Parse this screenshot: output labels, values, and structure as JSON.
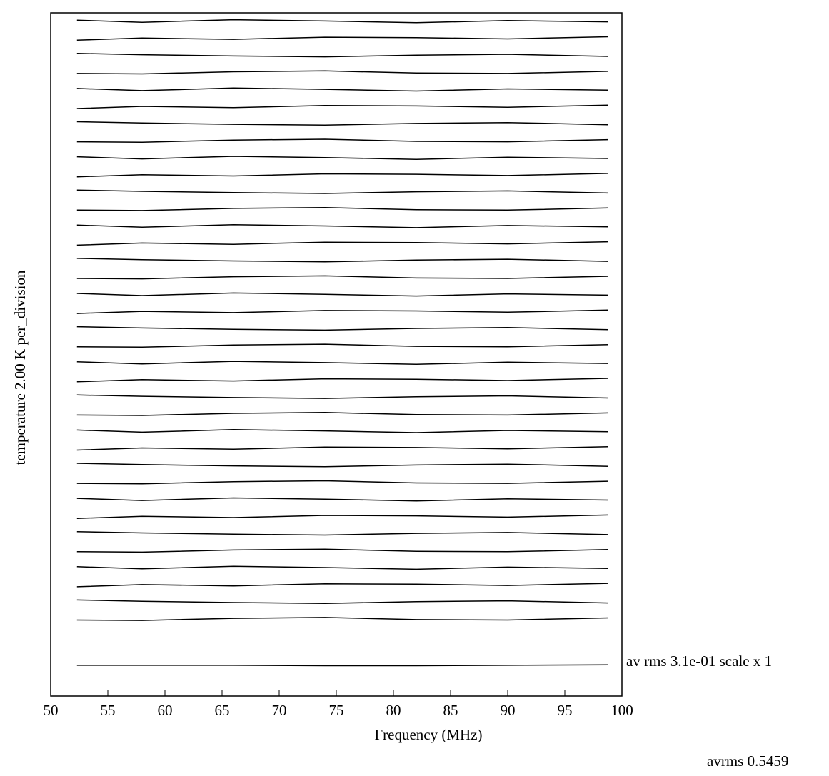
{
  "chart_data": {
    "type": "line",
    "x_label": "Frequency (MHz)",
    "y_label": "temperature   2.00 K  per_division",
    "annotations": [
      "av  rms 3.1e-01 scale x 1",
      "avrms 0.5459"
    ],
    "color": "#000000",
    "xlim": [
      50,
      100
    ],
    "xticks": [
      50,
      55,
      60,
      65,
      70,
      75,
      80,
      85,
      90,
      95,
      100
    ],
    "ylim": [
      0,
      160
    ],
    "x": [
      52.3,
      58,
      66,
      74,
      82,
      90,
      98.8
    ],
    "series": [
      {
        "values": [
          158.3,
          157.8,
          158.4,
          158.1,
          157.7,
          158.2,
          157.9
        ]
      },
      {
        "values": [
          153.6,
          154.1,
          153.8,
          154.3,
          154.2,
          153.9,
          154.4
        ]
      },
      {
        "values": [
          150.5,
          150.2,
          149.9,
          149.7,
          150.1,
          150.3,
          149.8
        ]
      },
      {
        "values": [
          145.8,
          145.7,
          146.2,
          146.4,
          145.9,
          145.8,
          146.3
        ]
      },
      {
        "values": [
          142.3,
          141.8,
          142.4,
          142.1,
          141.7,
          142.2,
          141.9
        ]
      },
      {
        "values": [
          137.6,
          138.1,
          137.8,
          138.3,
          138.2,
          137.9,
          138.4
        ]
      },
      {
        "values": [
          134.5,
          134.2,
          133.9,
          133.7,
          134.1,
          134.3,
          133.8
        ]
      },
      {
        "values": [
          129.8,
          129.7,
          130.2,
          130.4,
          129.9,
          129.8,
          130.3
        ]
      },
      {
        "values": [
          126.3,
          125.8,
          126.4,
          126.1,
          125.7,
          126.2,
          125.9
        ]
      },
      {
        "values": [
          121.6,
          122.1,
          121.8,
          122.3,
          122.2,
          121.9,
          122.4
        ]
      },
      {
        "values": [
          118.5,
          118.2,
          117.9,
          117.7,
          118.1,
          118.3,
          117.8
        ]
      },
      {
        "values": [
          113.8,
          113.7,
          114.2,
          114.4,
          113.9,
          113.8,
          114.3
        ]
      },
      {
        "values": [
          110.3,
          109.8,
          110.4,
          110.1,
          109.7,
          110.2,
          109.9
        ]
      },
      {
        "values": [
          105.6,
          106.1,
          105.8,
          106.3,
          106.2,
          105.9,
          106.4
        ]
      },
      {
        "values": [
          102.5,
          102.2,
          101.9,
          101.7,
          102.1,
          102.3,
          101.8
        ]
      },
      {
        "values": [
          97.8,
          97.7,
          98.2,
          98.4,
          97.9,
          97.8,
          98.3
        ]
      },
      {
        "values": [
          94.3,
          93.8,
          94.4,
          94.1,
          93.7,
          94.2,
          93.9
        ]
      },
      {
        "values": [
          89.6,
          90.1,
          89.8,
          90.3,
          90.2,
          89.9,
          90.4
        ]
      },
      {
        "values": [
          86.5,
          86.2,
          85.9,
          85.7,
          86.1,
          86.3,
          85.8
        ]
      },
      {
        "values": [
          81.8,
          81.7,
          82.2,
          82.4,
          81.9,
          81.8,
          82.3
        ]
      },
      {
        "values": [
          78.3,
          77.8,
          78.4,
          78.1,
          77.7,
          78.2,
          77.9
        ]
      },
      {
        "values": [
          73.6,
          74.1,
          73.8,
          74.3,
          74.2,
          73.9,
          74.4
        ]
      },
      {
        "values": [
          70.5,
          70.2,
          69.9,
          69.7,
          70.1,
          70.3,
          69.8
        ]
      },
      {
        "values": [
          65.8,
          65.7,
          66.2,
          66.4,
          65.9,
          65.8,
          66.3
        ]
      },
      {
        "values": [
          62.3,
          61.8,
          62.4,
          62.1,
          61.7,
          62.2,
          61.9
        ]
      },
      {
        "values": [
          57.6,
          58.1,
          57.8,
          58.3,
          58.2,
          57.9,
          58.4
        ]
      },
      {
        "values": [
          54.5,
          54.2,
          53.9,
          53.7,
          54.1,
          54.3,
          53.8
        ]
      },
      {
        "values": [
          49.8,
          49.7,
          50.2,
          50.4,
          49.9,
          49.8,
          50.3
        ]
      },
      {
        "values": [
          46.3,
          45.8,
          46.4,
          46.1,
          45.7,
          46.2,
          45.9
        ]
      },
      {
        "values": [
          41.6,
          42.1,
          41.8,
          42.3,
          42.2,
          41.9,
          42.4
        ]
      },
      {
        "values": [
          38.5,
          38.2,
          37.9,
          37.7,
          38.1,
          38.3,
          37.8
        ]
      },
      {
        "values": [
          33.8,
          33.7,
          34.2,
          34.4,
          33.9,
          33.8,
          34.3
        ]
      },
      {
        "values": [
          30.3,
          29.8,
          30.4,
          30.1,
          29.7,
          30.2,
          29.9
        ]
      },
      {
        "values": [
          25.6,
          26.1,
          25.8,
          26.3,
          26.2,
          25.9,
          26.4
        ]
      },
      {
        "values": [
          22.5,
          22.2,
          21.9,
          21.7,
          22.1,
          22.3,
          21.8
        ]
      },
      {
        "values": [
          17.8,
          17.7,
          18.2,
          18.4,
          17.9,
          17.8,
          18.3
        ]
      },
      {
        "values": [
          7.2,
          7.2,
          7.2,
          7.1,
          7.1,
          7.2,
          7.3
        ]
      }
    ]
  }
}
